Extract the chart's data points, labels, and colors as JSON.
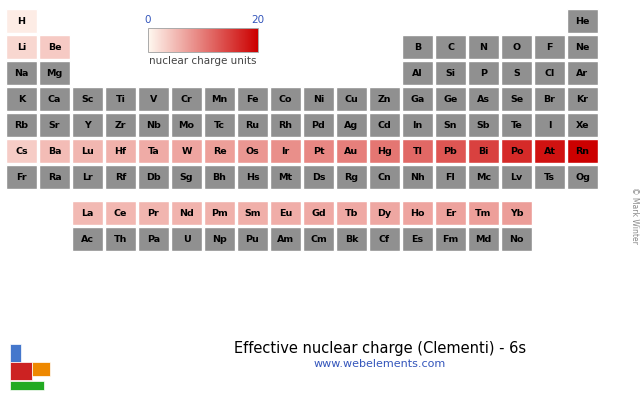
{
  "title": "Effective nuclear charge (Clementi) - 6s",
  "url": "www.webelements.com",
  "colorbar_label": "nuclear charge units",
  "colorbar_min": 0,
  "colorbar_max": 20,
  "no_data_color": "#909090",
  "elements": {
    "H": {
      "row": 0,
      "col": 0,
      "val": 1.0
    },
    "He": {
      "row": 0,
      "col": 17,
      "val": null
    },
    "Li": {
      "row": 1,
      "col": 0,
      "val": 2.69
    },
    "Be": {
      "row": 1,
      "col": 1,
      "val": 3.68
    },
    "B": {
      "row": 1,
      "col": 12,
      "val": null
    },
    "C": {
      "row": 1,
      "col": 13,
      "val": null
    },
    "N": {
      "row": 1,
      "col": 14,
      "val": null
    },
    "O": {
      "row": 1,
      "col": 15,
      "val": null
    },
    "F": {
      "row": 1,
      "col": 16,
      "val": null
    },
    "Ne": {
      "row": 1,
      "col": 17,
      "val": null
    },
    "Na": {
      "row": 2,
      "col": 0,
      "val": null
    },
    "Mg": {
      "row": 2,
      "col": 1,
      "val": null
    },
    "Al": {
      "row": 2,
      "col": 12,
      "val": null
    },
    "Si": {
      "row": 2,
      "col": 13,
      "val": null
    },
    "P": {
      "row": 2,
      "col": 14,
      "val": null
    },
    "S": {
      "row": 2,
      "col": 15,
      "val": null
    },
    "Cl": {
      "row": 2,
      "col": 16,
      "val": null
    },
    "Ar": {
      "row": 2,
      "col": 17,
      "val": null
    },
    "K": {
      "row": 3,
      "col": 0,
      "val": null
    },
    "Ca": {
      "row": 3,
      "col": 1,
      "val": null
    },
    "Sc": {
      "row": 3,
      "col": 2,
      "val": null
    },
    "Ti": {
      "row": 3,
      "col": 3,
      "val": null
    },
    "V": {
      "row": 3,
      "col": 4,
      "val": null
    },
    "Cr": {
      "row": 3,
      "col": 5,
      "val": null
    },
    "Mn": {
      "row": 3,
      "col": 6,
      "val": null
    },
    "Fe": {
      "row": 3,
      "col": 7,
      "val": null
    },
    "Co": {
      "row": 3,
      "col": 8,
      "val": null
    },
    "Ni": {
      "row": 3,
      "col": 9,
      "val": null
    },
    "Cu": {
      "row": 3,
      "col": 10,
      "val": null
    },
    "Zn": {
      "row": 3,
      "col": 11,
      "val": null
    },
    "Ga": {
      "row": 3,
      "col": 12,
      "val": null
    },
    "Ge": {
      "row": 3,
      "col": 13,
      "val": null
    },
    "As": {
      "row": 3,
      "col": 14,
      "val": null
    },
    "Se": {
      "row": 3,
      "col": 15,
      "val": null
    },
    "Br": {
      "row": 3,
      "col": 16,
      "val": null
    },
    "Kr": {
      "row": 3,
      "col": 17,
      "val": null
    },
    "Rb": {
      "row": 4,
      "col": 0,
      "val": null
    },
    "Sr": {
      "row": 4,
      "col": 1,
      "val": null
    },
    "Y": {
      "row": 4,
      "col": 2,
      "val": null
    },
    "Zr": {
      "row": 4,
      "col": 3,
      "val": null
    },
    "Nb": {
      "row": 4,
      "col": 4,
      "val": null
    },
    "Mo": {
      "row": 4,
      "col": 5,
      "val": null
    },
    "Tc": {
      "row": 4,
      "col": 6,
      "val": null
    },
    "Ru": {
      "row": 4,
      "col": 7,
      "val": null
    },
    "Rh": {
      "row": 4,
      "col": 8,
      "val": null
    },
    "Pd": {
      "row": 4,
      "col": 9,
      "val": null
    },
    "Ag": {
      "row": 4,
      "col": 10,
      "val": null
    },
    "Cd": {
      "row": 4,
      "col": 11,
      "val": null
    },
    "In": {
      "row": 4,
      "col": 12,
      "val": null
    },
    "Sn": {
      "row": 4,
      "col": 13,
      "val": null
    },
    "Sb": {
      "row": 4,
      "col": 14,
      "val": null
    },
    "Te": {
      "row": 4,
      "col": 15,
      "val": null
    },
    "I": {
      "row": 4,
      "col": 16,
      "val": null
    },
    "Xe": {
      "row": 4,
      "col": 17,
      "val": null
    },
    "Cs": {
      "row": 5,
      "col": 0,
      "val": 3.57
    },
    "Ba": {
      "row": 5,
      "col": 1,
      "val": 4.91
    },
    "Lu": {
      "row": 5,
      "col": 2,
      "val": 5.33
    },
    "Hf": {
      "row": 5,
      "col": 3,
      "val": 5.73
    },
    "Ta": {
      "row": 5,
      "col": 4,
      "val": 6.21
    },
    "W": {
      "row": 5,
      "col": 5,
      "val": 6.71
    },
    "Re": {
      "row": 5,
      "col": 6,
      "val": 7.21
    },
    "Os": {
      "row": 5,
      "col": 7,
      "val": 7.84
    },
    "Ir": {
      "row": 5,
      "col": 8,
      "val": 8.47
    },
    "Pt": {
      "row": 5,
      "col": 9,
      "val": 9.07
    },
    "Au": {
      "row": 5,
      "col": 10,
      "val": 9.75
    },
    "Hg": {
      "row": 5,
      "col": 11,
      "val": 10.5
    },
    "Tl": {
      "row": 5,
      "col": 12,
      "val": 11.6
    },
    "Pb": {
      "row": 5,
      "col": 13,
      "val": 13.06
    },
    "Bi": {
      "row": 5,
      "col": 14,
      "val": 14.72
    },
    "Po": {
      "row": 5,
      "col": 15,
      "val": 16.57
    },
    "At": {
      "row": 5,
      "col": 16,
      "val": 18.57
    },
    "Rn": {
      "row": 5,
      "col": 17,
      "val": 20.83
    },
    "Fr": {
      "row": 6,
      "col": 0,
      "val": null
    },
    "Ra": {
      "row": 6,
      "col": 1,
      "val": null
    },
    "Lr": {
      "row": 6,
      "col": 2,
      "val": null
    },
    "Rf": {
      "row": 6,
      "col": 3,
      "val": null
    },
    "Db": {
      "row": 6,
      "col": 4,
      "val": null
    },
    "Sg": {
      "row": 6,
      "col": 5,
      "val": null
    },
    "Bh": {
      "row": 6,
      "col": 6,
      "val": null
    },
    "Hs": {
      "row": 6,
      "col": 7,
      "val": null
    },
    "Mt": {
      "row": 6,
      "col": 8,
      "val": null
    },
    "Ds": {
      "row": 6,
      "col": 9,
      "val": null
    },
    "Rg": {
      "row": 6,
      "col": 10,
      "val": null
    },
    "Cn": {
      "row": 6,
      "col": 11,
      "val": null
    },
    "Nh": {
      "row": 6,
      "col": 12,
      "val": null
    },
    "Fl": {
      "row": 6,
      "col": 13,
      "val": null
    },
    "Mc": {
      "row": 6,
      "col": 14,
      "val": null
    },
    "Lv": {
      "row": 6,
      "col": 15,
      "val": null
    },
    "Ts": {
      "row": 6,
      "col": 16,
      "val": null
    },
    "Og": {
      "row": 6,
      "col": 17,
      "val": null
    },
    "La": {
      "row": 8,
      "col": 2,
      "val": 5.15
    },
    "Ce": {
      "row": 8,
      "col": 3,
      "val": 5.24
    },
    "Pr": {
      "row": 8,
      "col": 4,
      "val": 5.41
    },
    "Nd": {
      "row": 8,
      "col": 5,
      "val": 5.57
    },
    "Pm": {
      "row": 8,
      "col": 6,
      "val": 5.73
    },
    "Sm": {
      "row": 8,
      "col": 7,
      "val": 5.91
    },
    "Eu": {
      "row": 8,
      "col": 8,
      "val": 6.09
    },
    "Gd": {
      "row": 8,
      "col": 9,
      "val": 6.35
    },
    "Tb": {
      "row": 8,
      "col": 10,
      "val": 6.36
    },
    "Dy": {
      "row": 8,
      "col": 11,
      "val": 6.54
    },
    "Ho": {
      "row": 8,
      "col": 12,
      "val": 6.73
    },
    "Er": {
      "row": 8,
      "col": 13,
      "val": 6.93
    },
    "Tm": {
      "row": 8,
      "col": 14,
      "val": 7.14
    },
    "Yb": {
      "row": 8,
      "col": 15,
      "val": 7.35
    },
    "Ac": {
      "row": 9,
      "col": 2,
      "val": null
    },
    "Th": {
      "row": 9,
      "col": 3,
      "val": null
    },
    "Pa": {
      "row": 9,
      "col": 4,
      "val": null
    },
    "U": {
      "row": 9,
      "col": 5,
      "val": null
    },
    "Np": {
      "row": 9,
      "col": 6,
      "val": null
    },
    "Pu": {
      "row": 9,
      "col": 7,
      "val": null
    },
    "Am": {
      "row": 9,
      "col": 8,
      "val": null
    },
    "Cm": {
      "row": 9,
      "col": 9,
      "val": null
    },
    "Bk": {
      "row": 9,
      "col": 10,
      "val": null
    },
    "Cf": {
      "row": 9,
      "col": 11,
      "val": null
    },
    "Es": {
      "row": 9,
      "col": 12,
      "val": null
    },
    "Fm": {
      "row": 9,
      "col": 13,
      "val": null
    },
    "Md": {
      "row": 9,
      "col": 14,
      "val": null
    },
    "No": {
      "row": 9,
      "col": 15,
      "val": null
    }
  }
}
